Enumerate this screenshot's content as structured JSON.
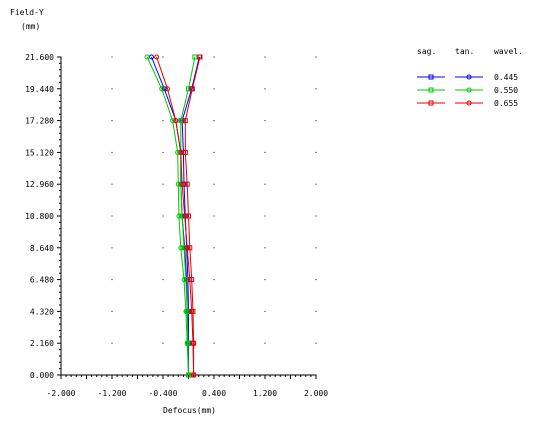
{
  "chart_data": {
    "type": "line",
    "title": "",
    "ylabel": "Field-Y",
    "yunit": "(mm)",
    "xlabel": "Defocus(mm)",
    "xlim": [
      -2.0,
      2.0
    ],
    "ylim": [
      0.0,
      21.6
    ],
    "xticks": [
      "-2.000",
      "-1.200",
      "-0.400",
      "0.400",
      "1.200",
      "2.000"
    ],
    "yticks": [
      "0.000",
      "2.160",
      "4.320",
      "6.480",
      "8.640",
      "10.800",
      "12.960",
      "15.120",
      "17.280",
      "19.440",
      "21.600"
    ],
    "grid": true,
    "legend": {
      "placement": "top-right",
      "headers": [
        "sag.",
        "tan.",
        "wavel."
      ],
      "entries": [
        "0.445",
        "0.550",
        "0.655"
      ]
    },
    "series": [
      {
        "name": "0.445",
        "color": "#0000ff",
        "sag": [
          [
            0.0,
            0.0
          ],
          [
            0.0,
            2.16
          ],
          [
            0.0,
            4.32
          ],
          [
            -0.01,
            6.48
          ],
          [
            -0.03,
            8.64
          ],
          [
            -0.05,
            10.8
          ],
          [
            -0.07,
            12.96
          ],
          [
            -0.08,
            15.12
          ],
          [
            -0.1,
            17.28
          ],
          [
            0.05,
            19.44
          ],
          [
            0.17,
            21.6
          ]
        ],
        "tan": [
          [
            0.0,
            0.0
          ],
          [
            0.0,
            2.16
          ],
          [
            -0.02,
            4.32
          ],
          [
            -0.03,
            6.48
          ],
          [
            -0.06,
            8.64
          ],
          [
            -0.1,
            10.8
          ],
          [
            -0.12,
            12.96
          ],
          [
            -0.12,
            15.12
          ],
          [
            -0.2,
            17.28
          ],
          [
            -0.38,
            19.44
          ],
          [
            -0.58,
            21.6
          ]
        ]
      },
      {
        "name": "0.550",
        "color": "#00c800",
        "sag": [
          [
            0.0,
            0.0
          ],
          [
            -0.01,
            2.16
          ],
          [
            -0.02,
            4.32
          ],
          [
            -0.04,
            6.48
          ],
          [
            -0.07,
            8.64
          ],
          [
            -0.1,
            10.8
          ],
          [
            -0.12,
            12.96
          ],
          [
            -0.12,
            15.12
          ],
          [
            -0.12,
            17.28
          ],
          [
            0.0,
            19.44
          ],
          [
            0.1,
            21.6
          ]
        ],
        "tan": [
          [
            0.0,
            0.0
          ],
          [
            -0.02,
            2.16
          ],
          [
            -0.04,
            4.32
          ],
          [
            -0.07,
            6.48
          ],
          [
            -0.12,
            8.64
          ],
          [
            -0.15,
            10.8
          ],
          [
            -0.16,
            12.96
          ],
          [
            -0.17,
            15.12
          ],
          [
            -0.25,
            17.28
          ],
          [
            -0.42,
            19.44
          ],
          [
            -0.65,
            21.6
          ]
        ]
      },
      {
        "name": "0.655",
        "color": "#e60000",
        "sag": [
          [
            0.08,
            0.0
          ],
          [
            0.08,
            2.16
          ],
          [
            0.07,
            4.32
          ],
          [
            0.05,
            6.48
          ],
          [
            0.02,
            8.64
          ],
          [
            0.0,
            10.8
          ],
          [
            -0.02,
            12.96
          ],
          [
            -0.05,
            15.12
          ],
          [
            -0.05,
            17.28
          ],
          [
            0.06,
            19.44
          ],
          [
            0.18,
            21.6
          ]
        ],
        "tan": [
          [
            0.08,
            0.0
          ],
          [
            0.07,
            2.16
          ],
          [
            0.05,
            4.32
          ],
          [
            0.02,
            6.48
          ],
          [
            -0.02,
            8.64
          ],
          [
            -0.06,
            10.8
          ],
          [
            -0.1,
            12.96
          ],
          [
            -0.12,
            15.12
          ],
          [
            -0.2,
            17.28
          ],
          [
            -0.33,
            19.44
          ],
          [
            -0.5,
            21.6
          ]
        ]
      }
    ]
  }
}
